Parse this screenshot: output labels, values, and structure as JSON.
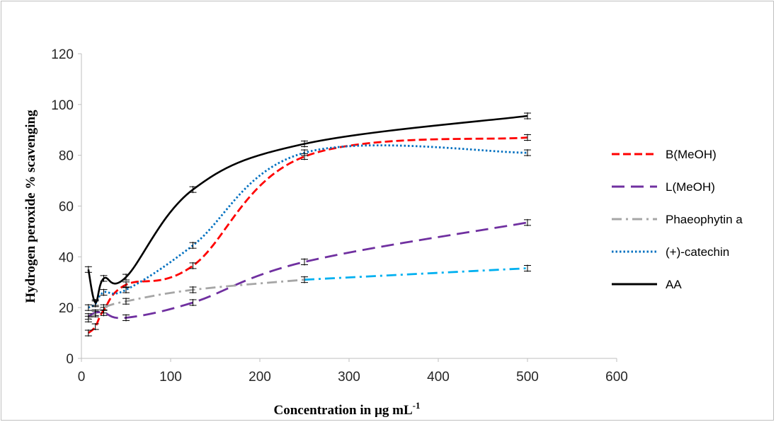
{
  "chart_data": {
    "type": "line",
    "title": "",
    "xlabel": "Concentration in µg mL",
    "xlabel_superscript": "-1",
    "ylabel": "Hydrogen peroxide % scavenging",
    "xlim": [
      0,
      600
    ],
    "ylim": [
      0,
      120
    ],
    "xticks": [
      0,
      100,
      200,
      300,
      400,
      500,
      600
    ],
    "yticks": [
      0,
      20,
      40,
      60,
      80,
      100,
      120
    ],
    "grid": false,
    "legend_position": "right",
    "series": [
      {
        "name": "B(MeOH)",
        "color": "#ff0000",
        "style": "dashed",
        "x": [
          7.8,
          15.6,
          25,
          50,
          125,
          250,
          500
        ],
        "y": [
          10,
          12.5,
          19,
          29,
          36.5,
          79.5,
          87
        ]
      },
      {
        "name": "L(MeOH)",
        "color": "#7030a0",
        "style": "long-dash",
        "x": [
          7.8,
          15.6,
          25,
          50,
          125,
          250,
          500
        ],
        "y": [
          16.5,
          18,
          18,
          16,
          22,
          38,
          53.5
        ]
      },
      {
        "name": "Phaeophytin a",
        "color": "#a6a6a6",
        "segment_color": "#00b0f0",
        "style": "dash-dot",
        "x": [
          7.8,
          15.6,
          25,
          50,
          125,
          250,
          500
        ],
        "y": [
          15.5,
          17.5,
          20,
          22.5,
          27,
          31,
          35.5
        ]
      },
      {
        "name": "(+)-catechin",
        "color": "#0070c0",
        "style": "dotted",
        "x": [
          7.8,
          15.6,
          25,
          50,
          125,
          250,
          500
        ],
        "y": [
          20,
          21.5,
          26,
          27,
          44.5,
          81,
          81
        ]
      },
      {
        "name": "AA",
        "color": "#000000",
        "style": "solid",
        "x": [
          7.8,
          15.6,
          25,
          50,
          125,
          250,
          500
        ],
        "y": [
          35,
          22,
          31.5,
          32,
          66.5,
          84.5,
          95.5
        ]
      }
    ]
  }
}
